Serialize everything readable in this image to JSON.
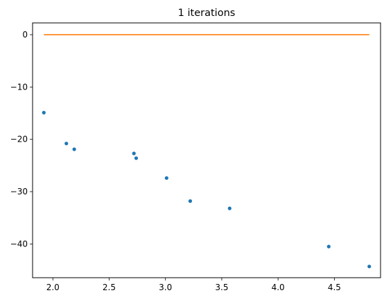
{
  "chart_data": {
    "type": "scatter",
    "title": "1 iterations",
    "xlabel": "",
    "ylabel": "",
    "xlim": [
      1.82,
      4.91
    ],
    "ylim": [
      -46.45,
      2.25
    ],
    "xticks": [
      2.0,
      2.5,
      3.0,
      3.5,
      4.0,
      4.5
    ],
    "xtick_labels": [
      "2.0",
      "2.5",
      "3.0",
      "3.5",
      "4.0",
      "4.5"
    ],
    "yticks": [
      0,
      -10,
      -20,
      -30,
      -40
    ],
    "ytick_labels": [
      "0",
      "−10",
      "−20",
      "−30",
      "−40"
    ],
    "grid": false,
    "series": [
      {
        "kind": "scatter",
        "color": "#1f77b4",
        "x": [
          1.92,
          2.12,
          2.19,
          2.72,
          2.74,
          3.01,
          3.22,
          3.57,
          4.45,
          4.81
        ],
        "y": [
          -14.9,
          -20.8,
          -21.9,
          -22.7,
          -23.6,
          -27.4,
          -31.8,
          -33.2,
          -40.5,
          -44.3
        ]
      },
      {
        "kind": "line",
        "color": "#ff7f0e",
        "x": [
          1.92,
          4.81
        ],
        "y": [
          0,
          0
        ]
      }
    ]
  }
}
